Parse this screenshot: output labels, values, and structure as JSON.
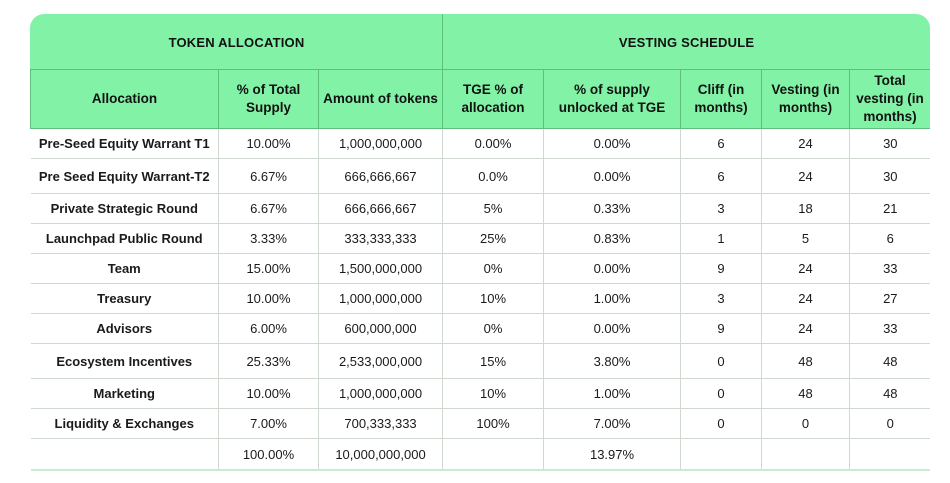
{
  "groups": {
    "allocation": "TOKEN ALLOCATION",
    "vesting": "VESTING SCHEDULE"
  },
  "columns": {
    "allocation": "Allocation",
    "pct_total_supply": "% of Total Supply",
    "amount": "Amount of tokens",
    "tge_pct": "TGE % of allocation",
    "supply_unlocked": "% of supply unlocked at TGE",
    "cliff": "Cliff (in months)",
    "vesting": "Vesting (in months)",
    "total_vesting": "Total vesting (in months)"
  },
  "rows": [
    {
      "name": "Pre-Seed Equity Warrant T1",
      "pct": "10.00%",
      "amount": "1,000,000,000",
      "tge": "0.00%",
      "unlocked": "0.00%",
      "cliff": "6",
      "vesting": "24",
      "total": "30"
    },
    {
      "name": "Pre Seed Equity Warrant-T2",
      "pct": "6.67%",
      "amount": "666,666,667",
      "tge": "0.0%",
      "unlocked": "0.00%",
      "cliff": "6",
      "vesting": "24",
      "total": "30"
    },
    {
      "name": "Private Strategic Round",
      "pct": "6.67%",
      "amount": "666,666,667",
      "tge": "5%",
      "unlocked": "0.33%",
      "cliff": "3",
      "vesting": "18",
      "total": "21"
    },
    {
      "name": "Launchpad Public Round",
      "pct": "3.33%",
      "amount": "333,333,333",
      "tge": "25%",
      "unlocked": "0.83%",
      "cliff": "1",
      "vesting": "5",
      "total": "6"
    },
    {
      "name": "Team",
      "pct": "15.00%",
      "amount": "1,500,000,000",
      "tge": "0%",
      "unlocked": "0.00%",
      "cliff": "9",
      "vesting": "24",
      "total": "33"
    },
    {
      "name": "Treasury",
      "pct": "10.00%",
      "amount": "1,000,000,000",
      "tge": "10%",
      "unlocked": "1.00%",
      "cliff": "3",
      "vesting": "24",
      "total": "27"
    },
    {
      "name": "Advisors",
      "pct": "6.00%",
      "amount": "600,000,000",
      "tge": "0%",
      "unlocked": "0.00%",
      "cliff": "9",
      "vesting": "24",
      "total": "33"
    },
    {
      "name": "Ecosystem Incentives",
      "pct": "25.33%",
      "amount": "2,533,000,000",
      "tge": "15%",
      "unlocked": "3.80%",
      "cliff": "0",
      "vesting": "48",
      "total": "48"
    },
    {
      "name": "Marketing",
      "pct": "10.00%",
      "amount": "1,000,000,000",
      "tge": "10%",
      "unlocked": "1.00%",
      "cliff": "0",
      "vesting": "48",
      "total": "48"
    },
    {
      "name": "Liquidity & Exchanges",
      "pct": "7.00%",
      "amount": "700,333,333",
      "tge": "100%",
      "unlocked": "7.00%",
      "cliff": "0",
      "vesting": "0",
      "total": "0"
    }
  ],
  "totals": {
    "pct": "100.00%",
    "amount": "10,000,000,000",
    "unlocked": "13.97%"
  },
  "colors": {
    "header_bg": "#82f3a6",
    "grid": "#cfd8cf"
  }
}
